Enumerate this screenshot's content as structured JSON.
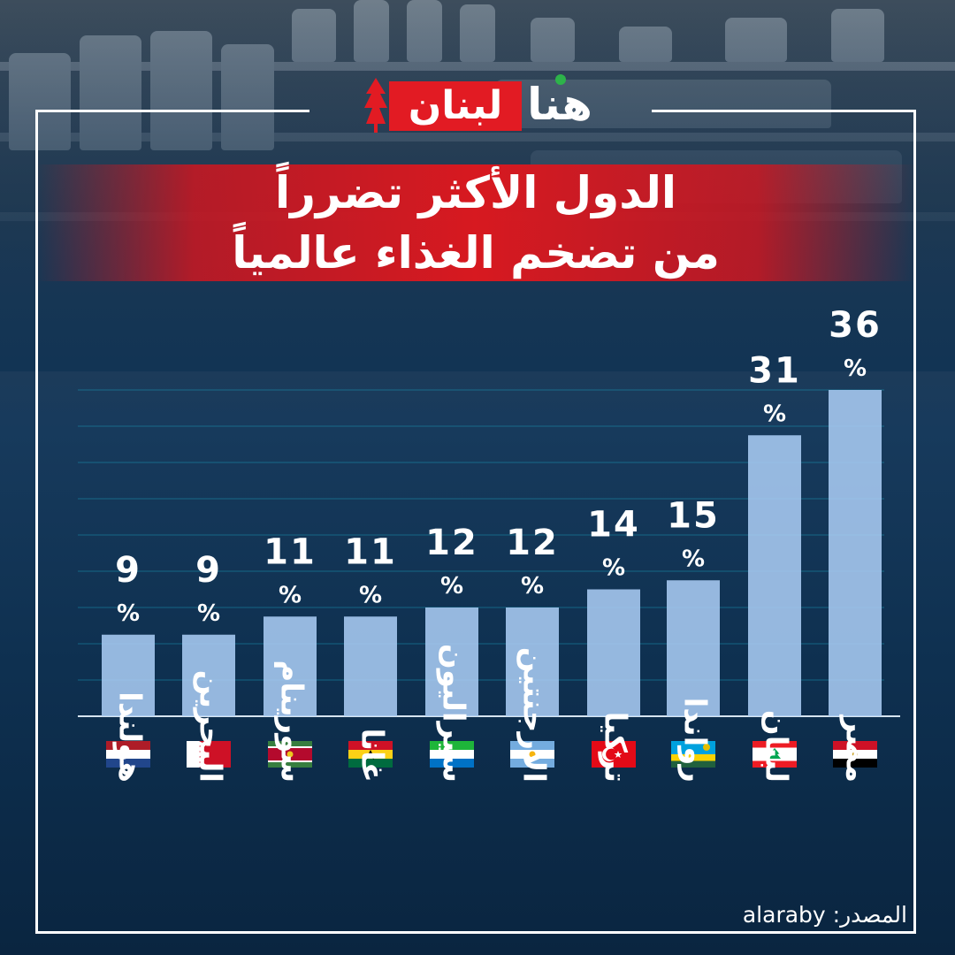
{
  "logo": {
    "red_text": "لبنان",
    "white_text": "هنا"
  },
  "title_lines": [
    "الدول الأكثر تضرراً",
    "من تضخم الغذاء عالمياً"
  ],
  "source": {
    "label": "المصدر:",
    "value": "alaraby"
  },
  "chart_data": {
    "type": "bar",
    "title": "الدول الأكثر تضرراً من تضخم الغذاء عالمياً",
    "categories": [
      "هولندا",
      "البحرين",
      "سورينام",
      "غانا",
      "سيراليون",
      "الأرجنتين",
      "تركيا",
      "رواندا",
      "لبنان",
      "مصر"
    ],
    "values": [
      9,
      9,
      11,
      11,
      12,
      12,
      14,
      15,
      31,
      36
    ],
    "value_suffix": "%",
    "flags": [
      "netherlands-flag",
      "bahrain-flag",
      "suriname-flag",
      "ghana-flag",
      "sierra-leone-flag",
      "argentina-flag",
      "turkey-flag",
      "rwanda-flag",
      "lebanon-flag",
      "egypt-flag"
    ],
    "ylim": [
      0,
      40
    ],
    "grid": true,
    "bar_color": "#a8cbf2",
    "label_color": "#ffffff"
  }
}
